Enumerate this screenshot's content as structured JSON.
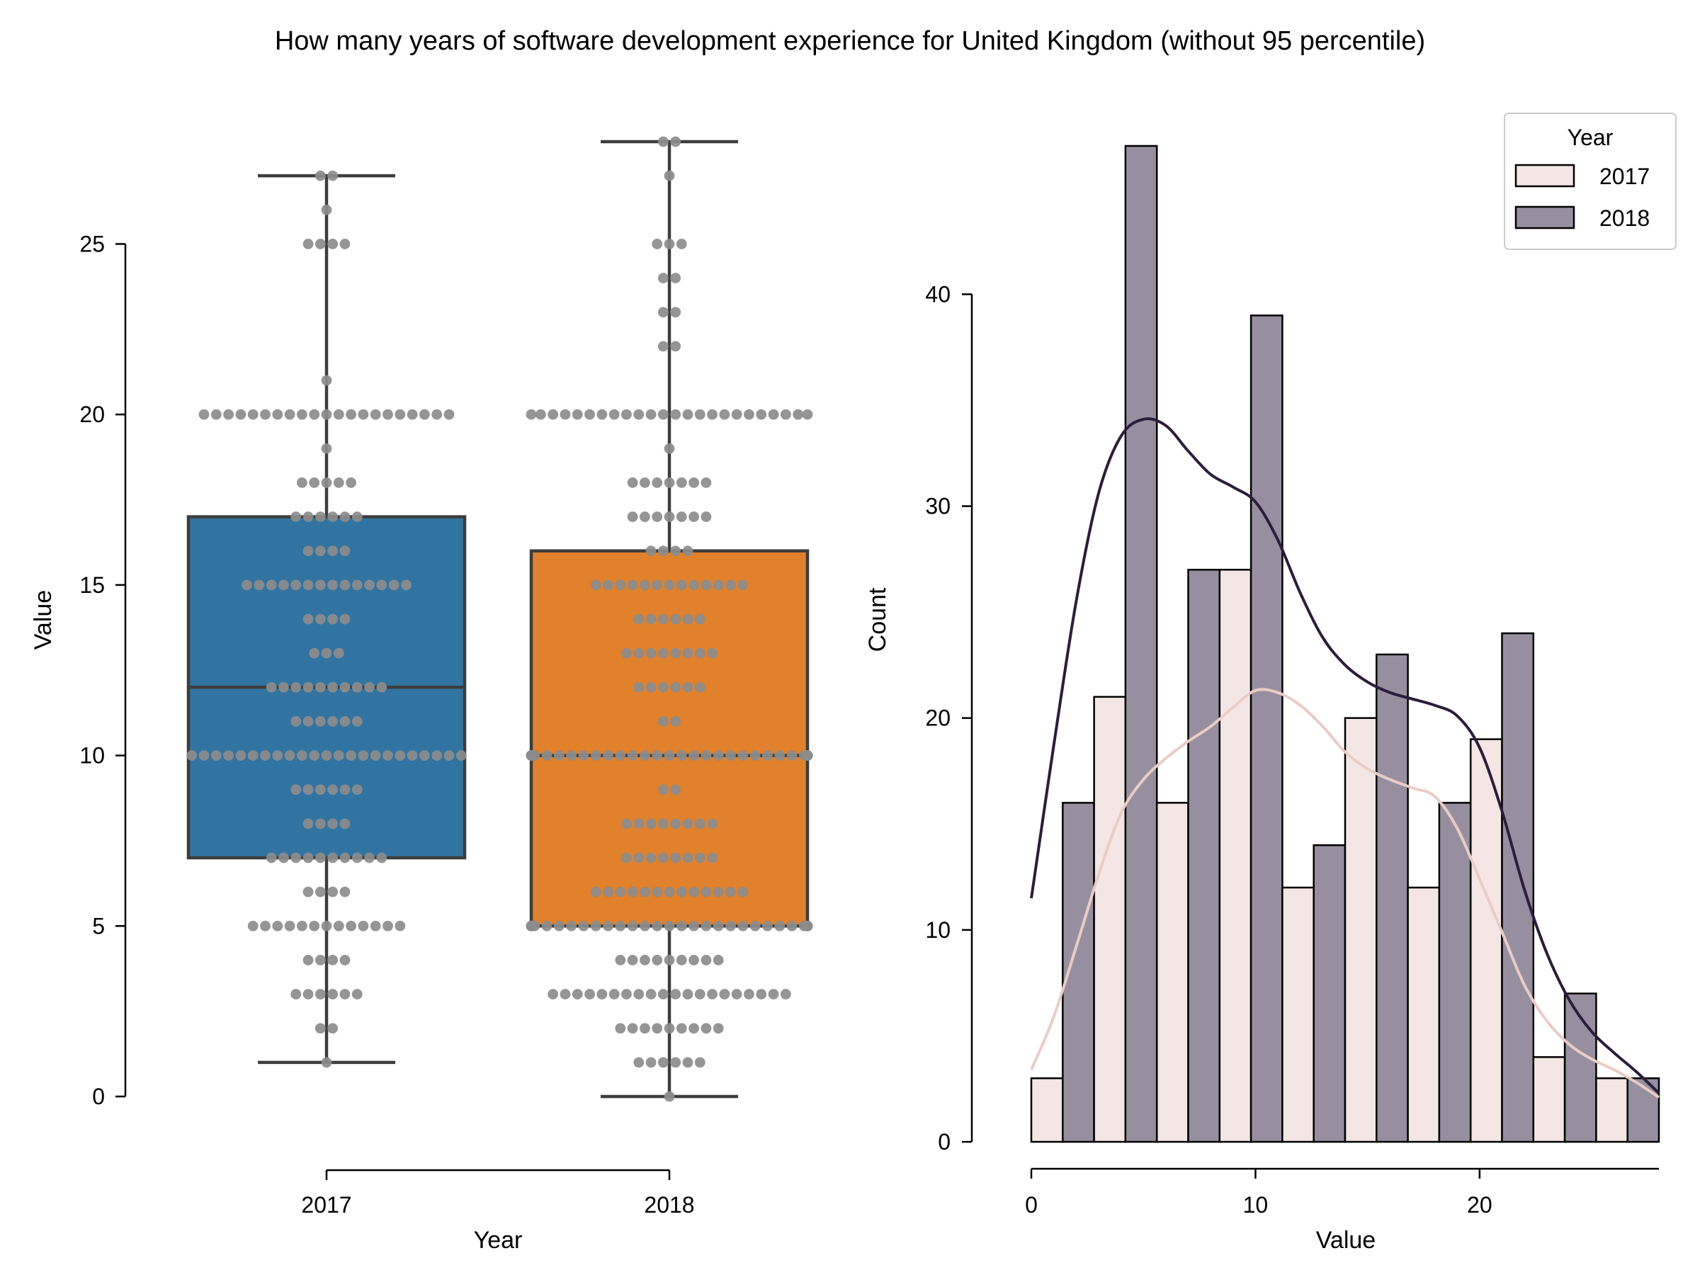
{
  "title": "How many years of software development experience for United Kingdom (without 95 percentile)",
  "colors": {
    "box_2017": "#3274a1",
    "box_2018": "#e1812c",
    "box_edge": "#3d3d3d",
    "swarm_dot": "#8c8c8c",
    "hist_2017": "#f4e6e4",
    "hist_2018": "#978fa0",
    "kde_2017": "#eaccc6",
    "kde_2018": "#2b1d3b"
  },
  "chart_data": [
    {
      "type": "box",
      "xlabel": "Year",
      "ylabel": "Value",
      "categories": [
        "2017",
        "2018"
      ],
      "ylim": [
        0,
        28
      ],
      "yticks": [
        0,
        5,
        10,
        15,
        20,
        25
      ],
      "boxes": [
        {
          "name": "2017",
          "whisker_low": 1,
          "q1": 7,
          "median": 12,
          "q3": 17,
          "whisker_high": 27
        },
        {
          "name": "2018",
          "whisker_low": 0,
          "q1": 5,
          "median": 10,
          "q3": 16,
          "whisker_high": 28
        }
      ],
      "swarm": {
        "2017": [
          {
            "value": 1,
            "count": 1
          },
          {
            "value": 2,
            "count": 2
          },
          {
            "value": 3,
            "count": 6
          },
          {
            "value": 4,
            "count": 4
          },
          {
            "value": 5,
            "count": 13
          },
          {
            "value": 6,
            "count": 4
          },
          {
            "value": 7,
            "count": 10
          },
          {
            "value": 8,
            "count": 4
          },
          {
            "value": 9,
            "count": 6
          },
          {
            "value": 10,
            "count": 23
          },
          {
            "value": 11,
            "count": 6
          },
          {
            "value": 12,
            "count": 10
          },
          {
            "value": 13,
            "count": 3
          },
          {
            "value": 14,
            "count": 4
          },
          {
            "value": 15,
            "count": 14
          },
          {
            "value": 16,
            "count": 4
          },
          {
            "value": 17,
            "count": 6
          },
          {
            "value": 18,
            "count": 5
          },
          {
            "value": 19,
            "count": 1
          },
          {
            "value": 20,
            "count": 21
          },
          {
            "value": 21,
            "count": 1
          },
          {
            "value": 25,
            "count": 4
          },
          {
            "value": 26,
            "count": 1
          },
          {
            "value": 27,
            "count": 2
          }
        ],
        "2018": [
          {
            "value": 0,
            "count": 1
          },
          {
            "value": 1,
            "count": 6
          },
          {
            "value": 2,
            "count": 9
          },
          {
            "value": 3,
            "count": 20
          },
          {
            "value": 4,
            "count": 9
          },
          {
            "value": 5,
            "count": 35
          },
          {
            "value": 6,
            "count": 13
          },
          {
            "value": 7,
            "count": 8
          },
          {
            "value": 8,
            "count": 8
          },
          {
            "value": 9,
            "count": 2
          },
          {
            "value": 10,
            "count": 37
          },
          {
            "value": 11,
            "count": 2
          },
          {
            "value": 12,
            "count": 6
          },
          {
            "value": 13,
            "count": 8
          },
          {
            "value": 14,
            "count": 6
          },
          {
            "value": 15,
            "count": 13
          },
          {
            "value": 16,
            "count": 4
          },
          {
            "value": 17,
            "count": 7
          },
          {
            "value": 18,
            "count": 7
          },
          {
            "value": 19,
            "count": 1
          },
          {
            "value": 20,
            "count": 24
          },
          {
            "value": 22,
            "count": 2
          },
          {
            "value": 23,
            "count": 2
          },
          {
            "value": 24,
            "count": 2
          },
          {
            "value": 25,
            "count": 3
          },
          {
            "value": 27,
            "count": 1
          },
          {
            "value": 28,
            "count": 2
          }
        ]
      }
    },
    {
      "type": "histogram",
      "xlabel": "Value",
      "ylabel": "Count",
      "xlim": [
        0,
        28
      ],
      "ylim": [
        0,
        47
      ],
      "xticks": [
        0,
        10,
        20
      ],
      "yticks": [
        0,
        10,
        20,
        30,
        40
      ],
      "legend": {
        "title": "Year",
        "position": "top-right"
      },
      "bin_edges": [
        0,
        2.8,
        5.6,
        8.4,
        11.2,
        14,
        16.8,
        19.6,
        22.4,
        25.2,
        28
      ],
      "series": [
        {
          "name": "2017",
          "counts": [
            3,
            21,
            16,
            27,
            12,
            20,
            12,
            19,
            4,
            3
          ],
          "kde": [
            [
              0,
              3.4
            ],
            [
              1,
              5.9
            ],
            [
              2,
              9.2
            ],
            [
              3,
              12.6
            ],
            [
              4,
              15.5
            ],
            [
              5,
              17.1
            ],
            [
              6,
              18.1
            ],
            [
              7,
              18.9
            ],
            [
              8,
              19.6
            ],
            [
              9,
              20.5
            ],
            [
              10,
              21.3
            ],
            [
              11,
              21.2
            ],
            [
              12,
              20.6
            ],
            [
              13,
              19.6
            ],
            [
              14,
              18.4
            ],
            [
              15,
              17.6
            ],
            [
              16,
              17.1
            ],
            [
              17,
              16.7
            ],
            [
              18,
              16.3
            ],
            [
              19,
              14.8
            ],
            [
              20,
              12.4
            ],
            [
              21,
              9.9
            ],
            [
              22,
              7.4
            ],
            [
              23,
              5.7
            ],
            [
              24,
              4.6
            ],
            [
              25,
              3.9
            ],
            [
              26,
              3.4
            ],
            [
              27,
              2.8
            ],
            [
              28,
              2.1
            ]
          ]
        },
        {
          "name": "2018",
          "counts": [
            16,
            47,
            27,
            39,
            14,
            23,
            16,
            24,
            7,
            3
          ],
          "kde": [
            [
              0,
              11.5
            ],
            [
              1,
              18.7
            ],
            [
              2,
              25.5
            ],
            [
              3,
              30.6
            ],
            [
              4,
              33.3
            ],
            [
              5,
              34.1
            ],
            [
              6,
              33.8
            ],
            [
              7,
              32.6
            ],
            [
              8,
              31.5
            ],
            [
              9,
              30.9
            ],
            [
              10,
              30.2
            ],
            [
              11,
              28.4
            ],
            [
              12,
              25.9
            ],
            [
              13,
              23.8
            ],
            [
              14,
              22.5
            ],
            [
              15,
              21.7
            ],
            [
              16,
              21.2
            ],
            [
              17,
              20.9
            ],
            [
              18,
              20.6
            ],
            [
              19,
              20.1
            ],
            [
              20,
              18.6
            ],
            [
              21,
              15.6
            ],
            [
              22,
              11.9
            ],
            [
              23,
              8.9
            ],
            [
              24,
              6.7
            ],
            [
              25,
              5.2
            ],
            [
              26,
              4.2
            ],
            [
              27,
              3.3
            ],
            [
              28,
              2.3
            ]
          ]
        }
      ]
    }
  ]
}
